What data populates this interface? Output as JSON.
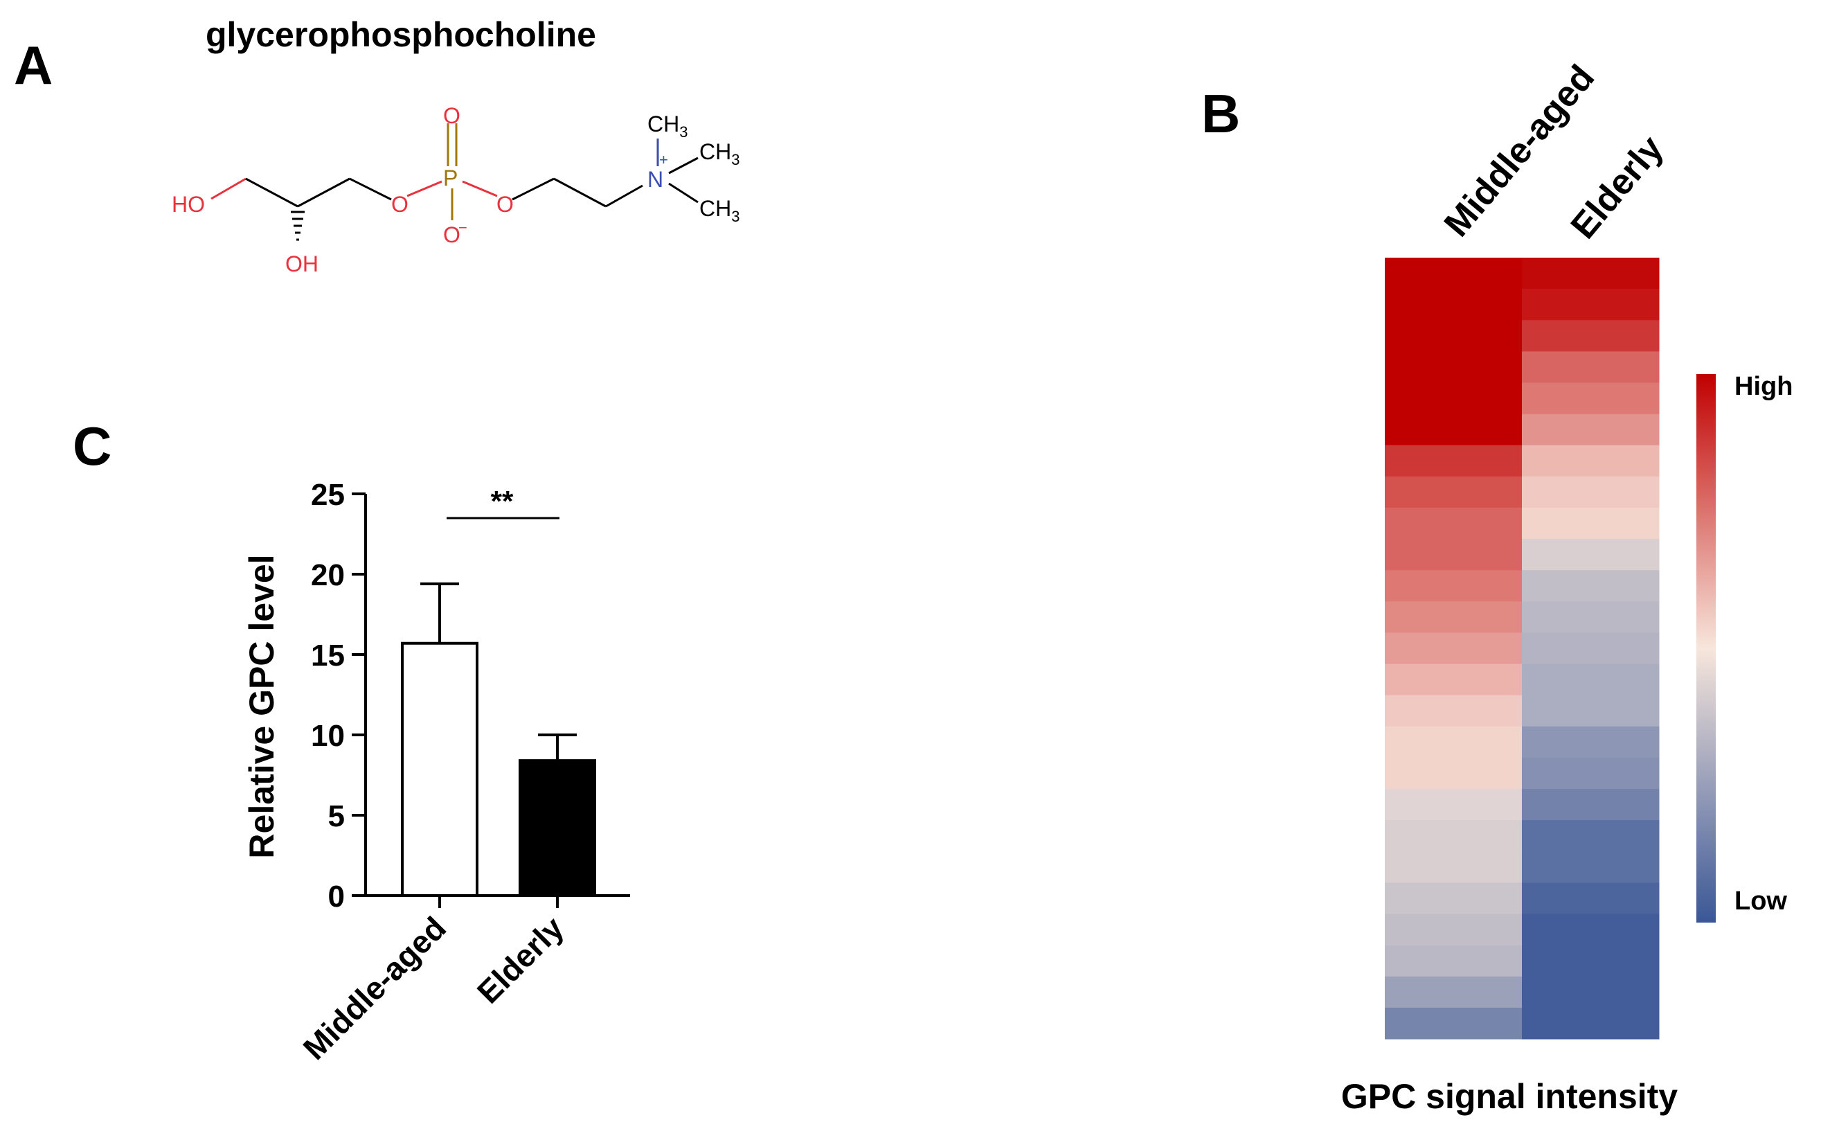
{
  "panels": {
    "a": "A",
    "b": "B",
    "c": "C"
  },
  "molecule": {
    "name": "glycerophosphocholine",
    "atom_labels": {
      "ho": "HO",
      "oh": "OH",
      "o_ester1": "O",
      "o_ester2": "O",
      "p": "P",
      "o_double": "O",
      "o_minus": "O",
      "minus": "−",
      "n": "N",
      "plus": "+",
      "ch3_top": "CH",
      "ch3_mid": "CH",
      "ch3_bot": "CH",
      "sub3": "3"
    },
    "colors": {
      "oxygen": "#e8323c",
      "phosphorus": "#a0780a",
      "nitrogen": "#3a4fb0",
      "bond": "#000000"
    }
  },
  "chart_data": [
    {
      "type": "heatmap",
      "columns": [
        "Middle-aged",
        "Elderly"
      ],
      "xlabel": "GPC signal intensity",
      "colorbar": {
        "high_label": "High",
        "low_label": "Low",
        "colors": [
          "#c00000",
          "#f7e6dc",
          "#3a5796"
        ]
      },
      "rows": 25,
      "values": [
        [
          1.0,
          0.98
        ],
        [
          1.0,
          0.95
        ],
        [
          1.0,
          0.88
        ],
        [
          1.0,
          0.78
        ],
        [
          1.0,
          0.74
        ],
        [
          1.0,
          0.68
        ],
        [
          0.88,
          0.6
        ],
        [
          0.82,
          0.56
        ],
        [
          0.78,
          0.54
        ],
        [
          0.78,
          0.42
        ],
        [
          0.74,
          0.36
        ],
        [
          0.7,
          0.34
        ],
        [
          0.66,
          0.32
        ],
        [
          0.61,
          0.3
        ],
        [
          0.56,
          0.3
        ],
        [
          0.54,
          0.22
        ],
        [
          0.54,
          0.2
        ],
        [
          0.44,
          0.15
        ],
        [
          0.42,
          0.09
        ],
        [
          0.42,
          0.09
        ],
        [
          0.38,
          0.05
        ],
        [
          0.36,
          0.02
        ],
        [
          0.34,
          0.02
        ],
        [
          0.26,
          0.02
        ],
        [
          0.16,
          0.02
        ]
      ]
    },
    {
      "type": "bar",
      "categories": [
        "Middle-aged",
        "Elderly"
      ],
      "values": [
        15.7,
        8.4
      ],
      "errors": [
        3.7,
        1.6
      ],
      "fills": [
        "#ffffff",
        "#000000"
      ],
      "ylabel": "Relative GPC level",
      "ylim": [
        0,
        25
      ],
      "yticks": [
        0,
        5,
        10,
        15,
        20,
        25
      ],
      "significance": "**"
    }
  ]
}
